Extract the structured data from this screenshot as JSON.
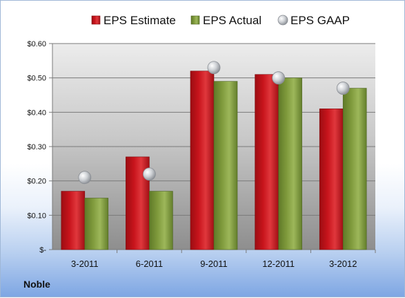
{
  "company": "Noble",
  "colors": {
    "estimate": "#c8141c",
    "actual": "#7f9a3c",
    "gaap": "#b8bcc2"
  },
  "chart_data": {
    "type": "bar",
    "categories": [
      "3-2011",
      "6-2011",
      "9-2011",
      "12-2011",
      "3-2012"
    ],
    "series": [
      {
        "name": "EPS Estimate",
        "type": "bar",
        "values": [
          0.17,
          0.27,
          0.52,
          0.51,
          0.41
        ]
      },
      {
        "name": "EPS Actual",
        "type": "bar",
        "values": [
          0.15,
          0.17,
          0.49,
          0.5,
          0.47
        ]
      },
      {
        "name": "EPS GAAP",
        "type": "scatter",
        "values": [
          0.21,
          0.22,
          0.53,
          0.5,
          0.47
        ]
      }
    ],
    "ylim": [
      0,
      0.6
    ],
    "yticks": [
      0,
      0.1,
      0.2,
      0.3,
      0.4,
      0.5,
      0.6
    ],
    "ytick_labels": [
      "$-",
      "$0.10",
      "$0.20",
      "$0.30",
      "$0.40",
      "$0.50",
      "$0.60"
    ],
    "legend_position": "top",
    "grid": true
  }
}
